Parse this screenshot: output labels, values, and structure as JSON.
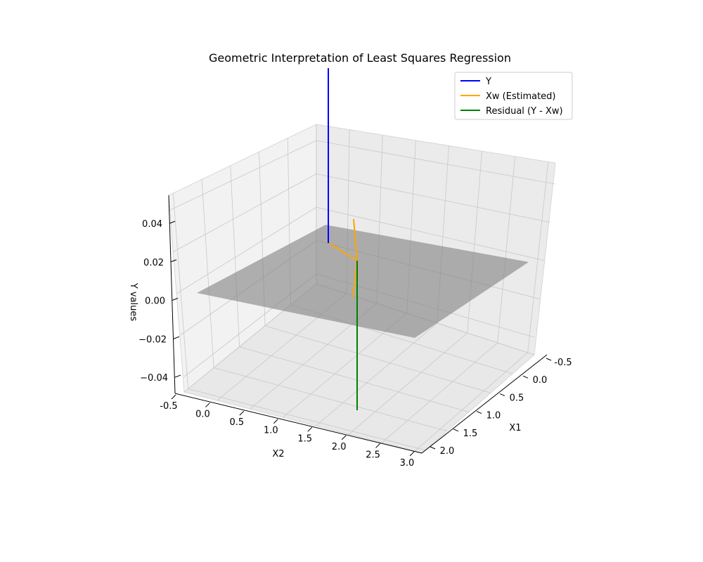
{
  "chart_data": {
    "type": "3d-line",
    "title": "Geometric Interpretation of Least Squares Regression",
    "xlabel": "X1",
    "ylabel": "X2",
    "zlabel": "Y values",
    "x_ticks": [
      "-0.5",
      "0.0",
      "0.5",
      "1.0",
      "1.5",
      "2.0"
    ],
    "y_ticks": [
      "-0.5",
      "0.0",
      "0.5",
      "1.0",
      "1.5",
      "2.0",
      "2.5",
      "3.0"
    ],
    "z_ticks": [
      "−0.04",
      "−0.02",
      "0.00",
      "0.02",
      "0.04"
    ],
    "plane": {
      "color": "#808080",
      "opacity": 0.6
    },
    "series": [
      {
        "name": "Y",
        "color": "#0000ff"
      },
      {
        "name": "Xw (Estimated)",
        "color": "#ffa500"
      },
      {
        "name": "Residual (Y - Xw)",
        "color": "#008000"
      }
    ],
    "legend_position": "top-right",
    "grid": true
  }
}
